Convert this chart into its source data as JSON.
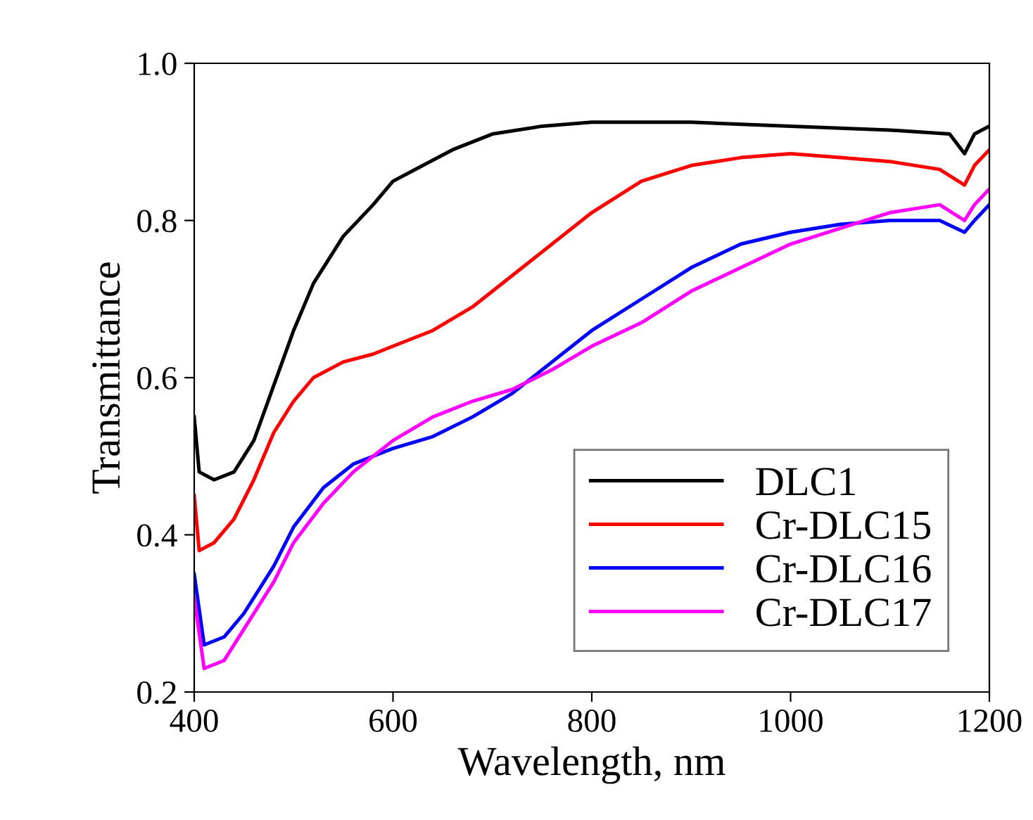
{
  "chart_data": {
    "type": "line",
    "xlabel": "Wavelength, nm",
    "ylabel": "Transmittance",
    "xlim": [
      400,
      1200
    ],
    "ylim": [
      0.2,
      1.0
    ],
    "xticks": [
      400,
      600,
      800,
      1000,
      1200
    ],
    "yticks": [
      {
        "value": 0.2,
        "label": "0.2"
      },
      {
        "value": 0.4,
        "label": "0.4"
      },
      {
        "value": 0.6,
        "label": "0.6"
      },
      {
        "value": 0.8,
        "label": "0.8"
      },
      {
        "value": 1.0,
        "label": "1.0"
      }
    ],
    "grid": false,
    "legend": "bottom right",
    "series": [
      {
        "name": "DLC1",
        "color": "#000000",
        "x": [
          400,
          405,
          420,
          440,
          460,
          480,
          500,
          520,
          550,
          580,
          600,
          630,
          660,
          700,
          750,
          800,
          900,
          1000,
          1100,
          1160,
          1175,
          1185,
          1200
        ],
        "values": [
          0.55,
          0.48,
          0.47,
          0.48,
          0.52,
          0.59,
          0.66,
          0.72,
          0.78,
          0.82,
          0.85,
          0.87,
          0.89,
          0.91,
          0.92,
          0.925,
          0.925,
          0.92,
          0.915,
          0.91,
          0.885,
          0.91,
          0.92
        ]
      },
      {
        "name": "Cr-DLC15",
        "color": "#ff0000",
        "x": [
          400,
          405,
          420,
          440,
          460,
          480,
          500,
          520,
          550,
          580,
          600,
          640,
          680,
          720,
          760,
          800,
          850,
          900,
          950,
          1000,
          1050,
          1100,
          1150,
          1175,
          1185,
          1200
        ],
        "values": [
          0.45,
          0.38,
          0.39,
          0.42,
          0.47,
          0.53,
          0.57,
          0.6,
          0.62,
          0.63,
          0.64,
          0.66,
          0.69,
          0.73,
          0.77,
          0.81,
          0.85,
          0.87,
          0.88,
          0.885,
          0.88,
          0.875,
          0.865,
          0.845,
          0.87,
          0.89
        ]
      },
      {
        "name": "Cr-DLC16",
        "color": "#0000ff",
        "x": [
          400,
          410,
          430,
          450,
          480,
          500,
          530,
          560,
          580,
          600,
          640,
          680,
          720,
          760,
          800,
          850,
          900,
          950,
          1000,
          1050,
          1100,
          1150,
          1175,
          1185,
          1200
        ],
        "values": [
          0.35,
          0.26,
          0.27,
          0.3,
          0.36,
          0.41,
          0.46,
          0.49,
          0.5,
          0.51,
          0.525,
          0.55,
          0.58,
          0.62,
          0.66,
          0.7,
          0.74,
          0.77,
          0.785,
          0.795,
          0.8,
          0.8,
          0.785,
          0.8,
          0.82
        ]
      },
      {
        "name": "Cr-DLC17",
        "color": "#ff00ff",
        "x": [
          400,
          410,
          430,
          450,
          480,
          500,
          530,
          560,
          580,
          600,
          640,
          680,
          720,
          760,
          800,
          850,
          900,
          950,
          1000,
          1050,
          1100,
          1150,
          1175,
          1185,
          1200
        ],
        "values": [
          0.32,
          0.23,
          0.24,
          0.28,
          0.34,
          0.39,
          0.44,
          0.48,
          0.5,
          0.52,
          0.55,
          0.57,
          0.585,
          0.61,
          0.64,
          0.67,
          0.71,
          0.74,
          0.77,
          0.79,
          0.81,
          0.82,
          0.8,
          0.82,
          0.84
        ]
      }
    ]
  }
}
